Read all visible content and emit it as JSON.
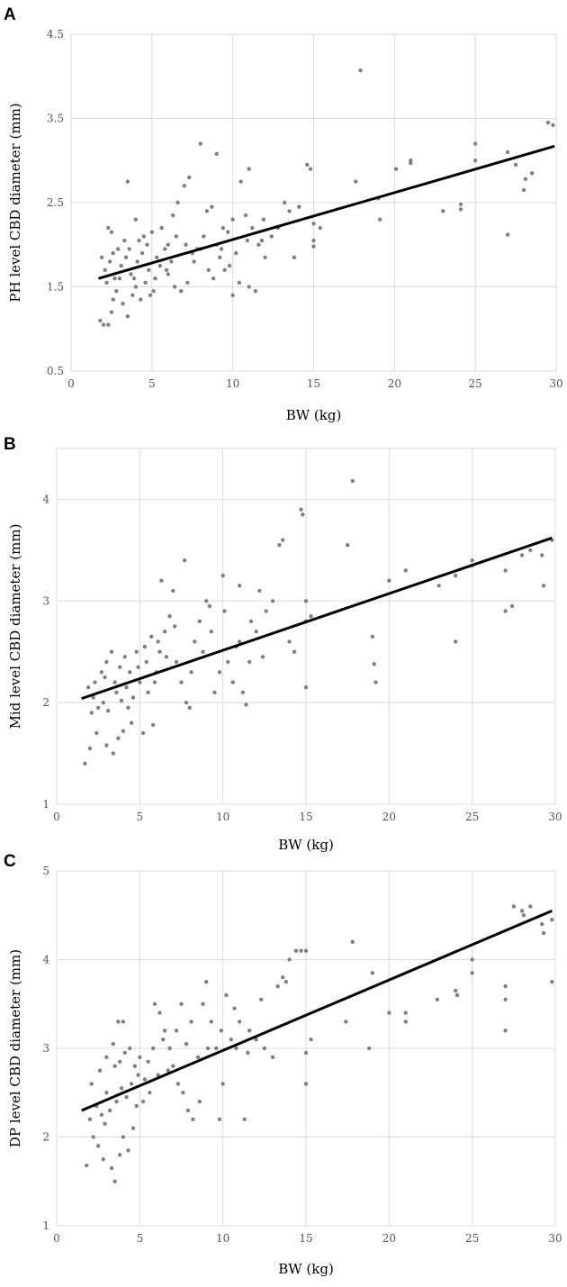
{
  "chart_data": [
    {
      "type": "scatter",
      "panel_label": "A",
      "xlabel": "BW (kg)",
      "ylabel": "PH level CBD diameter (mm)",
      "xlim": [
        0,
        30
      ],
      "ylim": [
        0.5,
        4.5
      ],
      "x_ticks": [
        0,
        5,
        10,
        15,
        20,
        25,
        30
      ],
      "y_ticks": [
        0.5,
        1.5,
        2.5,
        3.5,
        4.5
      ],
      "y_tick_labels": [
        "0.5",
        "1.5",
        "2.5",
        "3.5",
        "4.5"
      ],
      "trendline": {
        "x": [
          1.7,
          29.9
        ],
        "y": [
          1.6,
          3.17
        ]
      },
      "points": [
        [
          1.8,
          1.1
        ],
        [
          2.0,
          1.05
        ],
        [
          2.3,
          1.05
        ],
        [
          2.5,
          1.2
        ],
        [
          2.2,
          1.55
        ],
        [
          2.6,
          1.35
        ],
        [
          2.8,
          1.45
        ],
        [
          3.0,
          1.6
        ],
        [
          3.2,
          1.3
        ],
        [
          3.5,
          1.15
        ],
        [
          3.8,
          1.4
        ],
        [
          4.0,
          1.5
        ],
        [
          4.3,
          1.35
        ],
        [
          4.6,
          1.55
        ],
        [
          4.9,
          1.4
        ],
        [
          2.1,
          1.7
        ],
        [
          2.4,
          1.8
        ],
        [
          2.7,
          1.6
        ],
        [
          3.1,
          1.75
        ],
        [
          3.4,
          1.85
        ],
        [
          3.7,
          1.65
        ],
        [
          4.1,
          1.8
        ],
        [
          4.4,
          1.9
        ],
        [
          4.8,
          1.7
        ],
        [
          5.2,
          1.6
        ],
        [
          5.5,
          1.75
        ],
        [
          6.0,
          1.65
        ],
        [
          6.4,
          1.5
        ],
        [
          6.8,
          1.45
        ],
        [
          7.2,
          1.55
        ],
        [
          2.3,
          2.2
        ],
        [
          2.5,
          2.15
        ],
        [
          2.9,
          1.95
        ],
        [
          3.3,
          2.05
        ],
        [
          3.6,
          1.95
        ],
        [
          4.0,
          2.3
        ],
        [
          4.5,
          2.1
        ],
        [
          5.0,
          2.15
        ],
        [
          5.6,
          2.2
        ],
        [
          6.0,
          2.0
        ],
        [
          6.3,
          2.35
        ],
        [
          6.6,
          2.5
        ],
        [
          7.0,
          2.7
        ],
        [
          7.3,
          2.8
        ],
        [
          7.8,
          1.95
        ],
        [
          3.5,
          2.75
        ],
        [
          4.2,
          2.05
        ],
        [
          5.3,
          1.85
        ],
        [
          5.8,
          1.95
        ],
        [
          6.2,
          1.8
        ],
        [
          7.5,
          1.9
        ],
        [
          8.0,
          1.95
        ],
        [
          8.4,
          2.4
        ],
        [
          8.7,
          2.45
        ],
        [
          9.0,
          2.0
        ],
        [
          9.2,
          1.85
        ],
        [
          9.5,
          1.7
        ],
        [
          9.8,
          1.75
        ],
        [
          10.0,
          1.4
        ],
        [
          10.4,
          1.55
        ],
        [
          8.0,
          3.2
        ],
        [
          9.0,
          3.08
        ],
        [
          8.8,
          1.6
        ],
        [
          9.3,
          1.95
        ],
        [
          9.7,
          2.15
        ],
        [
          10.0,
          2.3
        ],
        [
          10.5,
          2.75
        ],
        [
          10.8,
          2.35
        ],
        [
          11.0,
          2.9
        ],
        [
          11.2,
          2.2
        ],
        [
          11.4,
          1.45
        ],
        [
          11.0,
          1.5
        ],
        [
          11.6,
          2.0
        ],
        [
          11.8,
          2.05
        ],
        [
          12.0,
          1.85
        ],
        [
          12.4,
          2.1
        ],
        [
          12.8,
          2.2
        ],
        [
          13.2,
          2.5
        ],
        [
          13.5,
          2.4
        ],
        [
          13.8,
          1.85
        ],
        [
          14.1,
          2.45
        ],
        [
          14.6,
          2.95
        ],
        [
          14.8,
          2.9
        ],
        [
          15.0,
          2.25
        ],
        [
          15.0,
          2.05
        ],
        [
          15.0,
          1.98
        ],
        [
          15.4,
          2.2
        ],
        [
          17.6,
          2.75
        ],
        [
          17.9,
          4.07
        ],
        [
          19.0,
          2.55
        ],
        [
          19.1,
          2.3
        ],
        [
          20.1,
          2.9
        ],
        [
          21.0,
          3.0
        ],
        [
          21.0,
          2.97
        ],
        [
          23.0,
          2.4
        ],
        [
          24.1,
          2.42
        ],
        [
          24.1,
          2.48
        ],
        [
          25.0,
          3.2
        ],
        [
          25.0,
          3.0
        ],
        [
          27.0,
          3.1
        ],
        [
          27.0,
          2.12
        ],
        [
          27.5,
          2.95
        ],
        [
          28.0,
          2.65
        ],
        [
          28.1,
          2.78
        ],
        [
          28.5,
          2.85
        ],
        [
          29.5,
          3.45
        ],
        [
          29.8,
          3.42
        ],
        [
          1.9,
          1.85
        ],
        [
          2.6,
          1.9
        ],
        [
          3.9,
          1.6
        ],
        [
          4.7,
          2.0
        ],
        [
          5.1,
          1.45
        ],
        [
          5.9,
          1.7
        ],
        [
          6.5,
          2.1
        ],
        [
          7.1,
          2.0
        ],
        [
          7.6,
          1.8
        ],
        [
          8.2,
          2.1
        ],
        [
          8.5,
          1.7
        ],
        [
          9.4,
          2.2
        ],
        [
          10.2,
          1.9
        ],
        [
          10.9,
          2.05
        ],
        [
          11.9,
          2.3
        ]
      ]
    },
    {
      "type": "scatter",
      "panel_label": "B",
      "xlabel": "BW (kg)",
      "ylabel": "Mid level CBD diameter (mm)",
      "xlim": [
        0,
        30
      ],
      "ylim": [
        1,
        4.5
      ],
      "x_ticks": [
        0,
        5,
        10,
        15,
        20,
        25,
        30
      ],
      "y_ticks": [
        1,
        2,
        3,
        4
      ],
      "y_tick_labels": [
        "1",
        "2",
        "3",
        "4"
      ],
      "trendline": {
        "x": [
          1.5,
          29.8
        ],
        "y": [
          2.04,
          3.62
        ]
      },
      "points": [
        [
          1.7,
          1.4
        ],
        [
          2.0,
          1.55
        ],
        [
          2.4,
          1.7
        ],
        [
          3.0,
          1.58
        ],
        [
          3.4,
          1.5
        ],
        [
          3.7,
          1.65
        ],
        [
          4.0,
          1.72
        ],
        [
          4.5,
          1.8
        ],
        [
          5.2,
          1.7
        ],
        [
          5.8,
          1.78
        ],
        [
          2.1,
          1.9
        ],
        [
          2.5,
          1.95
        ],
        [
          2.8,
          2.0
        ],
        [
          3.1,
          1.92
        ],
        [
          3.6,
          2.1
        ],
        [
          3.9,
          2.02
        ],
        [
          4.2,
          2.15
        ],
        [
          4.6,
          2.05
        ],
        [
          5.0,
          2.2
        ],
        [
          5.5,
          2.1
        ],
        [
          2.3,
          2.2
        ],
        [
          2.7,
          2.3
        ],
        [
          3.0,
          2.4
        ],
        [
          3.3,
          2.5
        ],
        [
          3.8,
          2.35
        ],
        [
          4.1,
          2.45
        ],
        [
          4.4,
          2.3
        ],
        [
          4.8,
          2.5
        ],
        [
          5.3,
          2.55
        ],
        [
          5.7,
          2.65
        ],
        [
          6.0,
          2.3
        ],
        [
          6.2,
          2.5
        ],
        [
          6.5,
          2.7
        ],
        [
          6.8,
          2.85
        ],
        [
          7.0,
          3.1
        ],
        [
          6.3,
          3.2
        ],
        [
          7.2,
          2.4
        ],
        [
          7.5,
          2.2
        ],
        [
          7.8,
          2.0
        ],
        [
          8.0,
          1.95
        ],
        [
          8.3,
          2.6
        ],
        [
          8.6,
          2.8
        ],
        [
          9.0,
          3.0
        ],
        [
          9.2,
          2.95
        ],
        [
          9.5,
          2.1
        ],
        [
          9.8,
          2.3
        ],
        [
          10.0,
          3.25
        ],
        [
          10.3,
          2.4
        ],
        [
          10.6,
          2.2
        ],
        [
          11.0,
          2.6
        ],
        [
          11.0,
          3.15
        ],
        [
          11.2,
          2.1
        ],
        [
          11.4,
          1.98
        ],
        [
          11.7,
          2.8
        ],
        [
          12.0,
          2.7
        ],
        [
          12.2,
          3.1
        ],
        [
          12.6,
          2.9
        ],
        [
          13.0,
          3.0
        ],
        [
          13.4,
          3.55
        ],
        [
          13.6,
          3.6
        ],
        [
          14.0,
          2.6
        ],
        [
          14.3,
          2.5
        ],
        [
          14.7,
          3.9
        ],
        [
          14.8,
          3.85
        ],
        [
          15.0,
          3.0
        ],
        [
          15.0,
          2.8
        ],
        [
          15.0,
          2.15
        ],
        [
          15.3,
          2.85
        ],
        [
          17.5,
          3.55
        ],
        [
          17.8,
          4.18
        ],
        [
          19.0,
          2.65
        ],
        [
          19.1,
          2.38
        ],
        [
          19.2,
          2.2
        ],
        [
          20.0,
          3.2
        ],
        [
          21.0,
          3.3
        ],
        [
          23.0,
          3.15
        ],
        [
          24.0,
          3.25
        ],
        [
          24.0,
          2.6
        ],
        [
          25.0,
          3.4
        ],
        [
          25.0,
          3.35
        ],
        [
          27.0,
          3.3
        ],
        [
          27.0,
          2.9
        ],
        [
          27.4,
          2.95
        ],
        [
          28.0,
          3.45
        ],
        [
          28.5,
          3.5
        ],
        [
          29.2,
          3.45
        ],
        [
          29.3,
          3.15
        ],
        [
          29.8,
          3.6
        ],
        [
          1.9,
          2.15
        ],
        [
          2.2,
          2.05
        ],
        [
          2.9,
          2.25
        ],
        [
          3.5,
          2.2
        ],
        [
          4.3,
          1.95
        ],
        [
          4.9,
          2.35
        ],
        [
          5.4,
          2.4
        ],
        [
          5.9,
          2.2
        ],
        [
          6.1,
          2.6
        ],
        [
          6.6,
          2.45
        ],
        [
          7.1,
          2.75
        ],
        [
          7.7,
          3.4
        ],
        [
          8.1,
          2.3
        ],
        [
          8.8,
          2.5
        ],
        [
          9.3,
          2.7
        ],
        [
          10.1,
          2.9
        ],
        [
          10.8,
          2.55
        ],
        [
          11.6,
          2.4
        ],
        [
          12.4,
          2.45
        ]
      ]
    },
    {
      "type": "scatter",
      "panel_label": "C",
      "xlabel": "BW (kg)",
      "ylabel": "DP level CBD diameter (mm)",
      "xlim": [
        0,
        30
      ],
      "ylim": [
        1,
        5
      ],
      "x_ticks": [
        0,
        5,
        10,
        15,
        20,
        25,
        30
      ],
      "y_ticks": [
        1,
        2,
        3,
        4,
        5
      ],
      "y_tick_labels": [
        "1",
        "2",
        "3",
        "4",
        "5"
      ],
      "trendline": {
        "x": [
          1.5,
          29.8
        ],
        "y": [
          2.3,
          4.55
        ]
      },
      "points": [
        [
          1.8,
          1.68
        ],
        [
          2.2,
          2.0
        ],
        [
          2.5,
          1.9
        ],
        [
          2.8,
          1.75
        ],
        [
          3.3,
          1.65
        ],
        [
          3.5,
          1.5
        ],
        [
          3.8,
          1.8
        ],
        [
          4.0,
          2.0
        ],
        [
          4.3,
          1.85
        ],
        [
          4.6,
          2.1
        ],
        [
          2.0,
          2.2
        ],
        [
          2.4,
          2.35
        ],
        [
          2.7,
          2.25
        ],
        [
          3.0,
          2.5
        ],
        [
          3.2,
          2.3
        ],
        [
          3.6,
          2.4
        ],
        [
          3.9,
          2.55
        ],
        [
          4.2,
          2.45
        ],
        [
          4.5,
          2.6
        ],
        [
          4.9,
          2.7
        ],
        [
          2.6,
          2.75
        ],
        [
          3.0,
          2.9
        ],
        [
          3.4,
          3.05
        ],
        [
          3.8,
          2.85
        ],
        [
          4.1,
          2.95
        ],
        [
          4.4,
          3.0
        ],
        [
          4.7,
          2.8
        ],
        [
          5.0,
          2.9
        ],
        [
          5.3,
          2.65
        ],
        [
          5.6,
          2.5
        ],
        [
          3.7,
          3.3
        ],
        [
          4.0,
          3.3
        ],
        [
          5.9,
          3.5
        ],
        [
          6.2,
          3.4
        ],
        [
          6.5,
          3.2
        ],
        [
          6.8,
          3.0
        ],
        [
          7.0,
          2.8
        ],
        [
          7.3,
          2.6
        ],
        [
          7.6,
          2.5
        ],
        [
          7.9,
          2.3
        ],
        [
          8.2,
          2.2
        ],
        [
          8.5,
          2.9
        ],
        [
          8.8,
          3.5
        ],
        [
          9.0,
          3.75
        ],
        [
          9.3,
          3.3
        ],
        [
          9.6,
          3.0
        ],
        [
          9.8,
          2.2
        ],
        [
          10.0,
          2.6
        ],
        [
          10.2,
          3.6
        ],
        [
          10.5,
          3.1
        ],
        [
          10.8,
          3.0
        ],
        [
          11.0,
          3.3
        ],
        [
          11.3,
          2.2
        ],
        [
          11.6,
          3.2
        ],
        [
          12.0,
          3.1
        ],
        [
          12.3,
          3.55
        ],
        [
          13.0,
          2.9
        ],
        [
          13.3,
          3.7
        ],
        [
          13.6,
          3.8
        ],
        [
          13.8,
          3.75
        ],
        [
          14.0,
          4.0
        ],
        [
          14.4,
          4.1
        ],
        [
          14.7,
          4.1
        ],
        [
          15.0,
          4.1
        ],
        [
          15.0,
          2.95
        ],
        [
          15.0,
          2.6
        ],
        [
          15.3,
          3.1
        ],
        [
          17.4,
          3.3
        ],
        [
          17.8,
          4.2
        ],
        [
          18.8,
          3.0
        ],
        [
          19.0,
          3.85
        ],
        [
          20.0,
          3.4
        ],
        [
          21.0,
          3.4
        ],
        [
          21.0,
          3.3
        ],
        [
          22.9,
          3.55
        ],
        [
          24.0,
          3.65
        ],
        [
          24.1,
          3.6
        ],
        [
          25.0,
          4.0
        ],
        [
          25.0,
          3.85
        ],
        [
          27.0,
          3.7
        ],
        [
          27.0,
          3.55
        ],
        [
          27.0,
          3.2
        ],
        [
          27.5,
          4.6
        ],
        [
          28.0,
          4.55
        ],
        [
          28.1,
          4.5
        ],
        [
          28.5,
          4.6
        ],
        [
          29.2,
          4.4
        ],
        [
          29.3,
          4.3
        ],
        [
          29.8,
          4.45
        ],
        [
          29.8,
          3.75
        ],
        [
          2.1,
          2.6
        ],
        [
          2.9,
          2.15
        ],
        [
          3.5,
          2.8
        ],
        [
          4.8,
          2.35
        ],
        [
          5.2,
          2.4
        ],
        [
          5.5,
          2.85
        ],
        [
          5.8,
          3.0
        ],
        [
          6.1,
          2.7
        ],
        [
          6.4,
          3.1
        ],
        [
          6.7,
          2.75
        ],
        [
          7.2,
          3.2
        ],
        [
          7.5,
          3.5
        ],
        [
          7.8,
          3.05
        ],
        [
          8.1,
          3.3
        ],
        [
          8.6,
          2.4
        ],
        [
          9.1,
          3.0
        ],
        [
          9.9,
          3.2
        ],
        [
          10.7,
          3.45
        ],
        [
          11.5,
          2.95
        ],
        [
          12.5,
          3.0
        ]
      ]
    }
  ]
}
